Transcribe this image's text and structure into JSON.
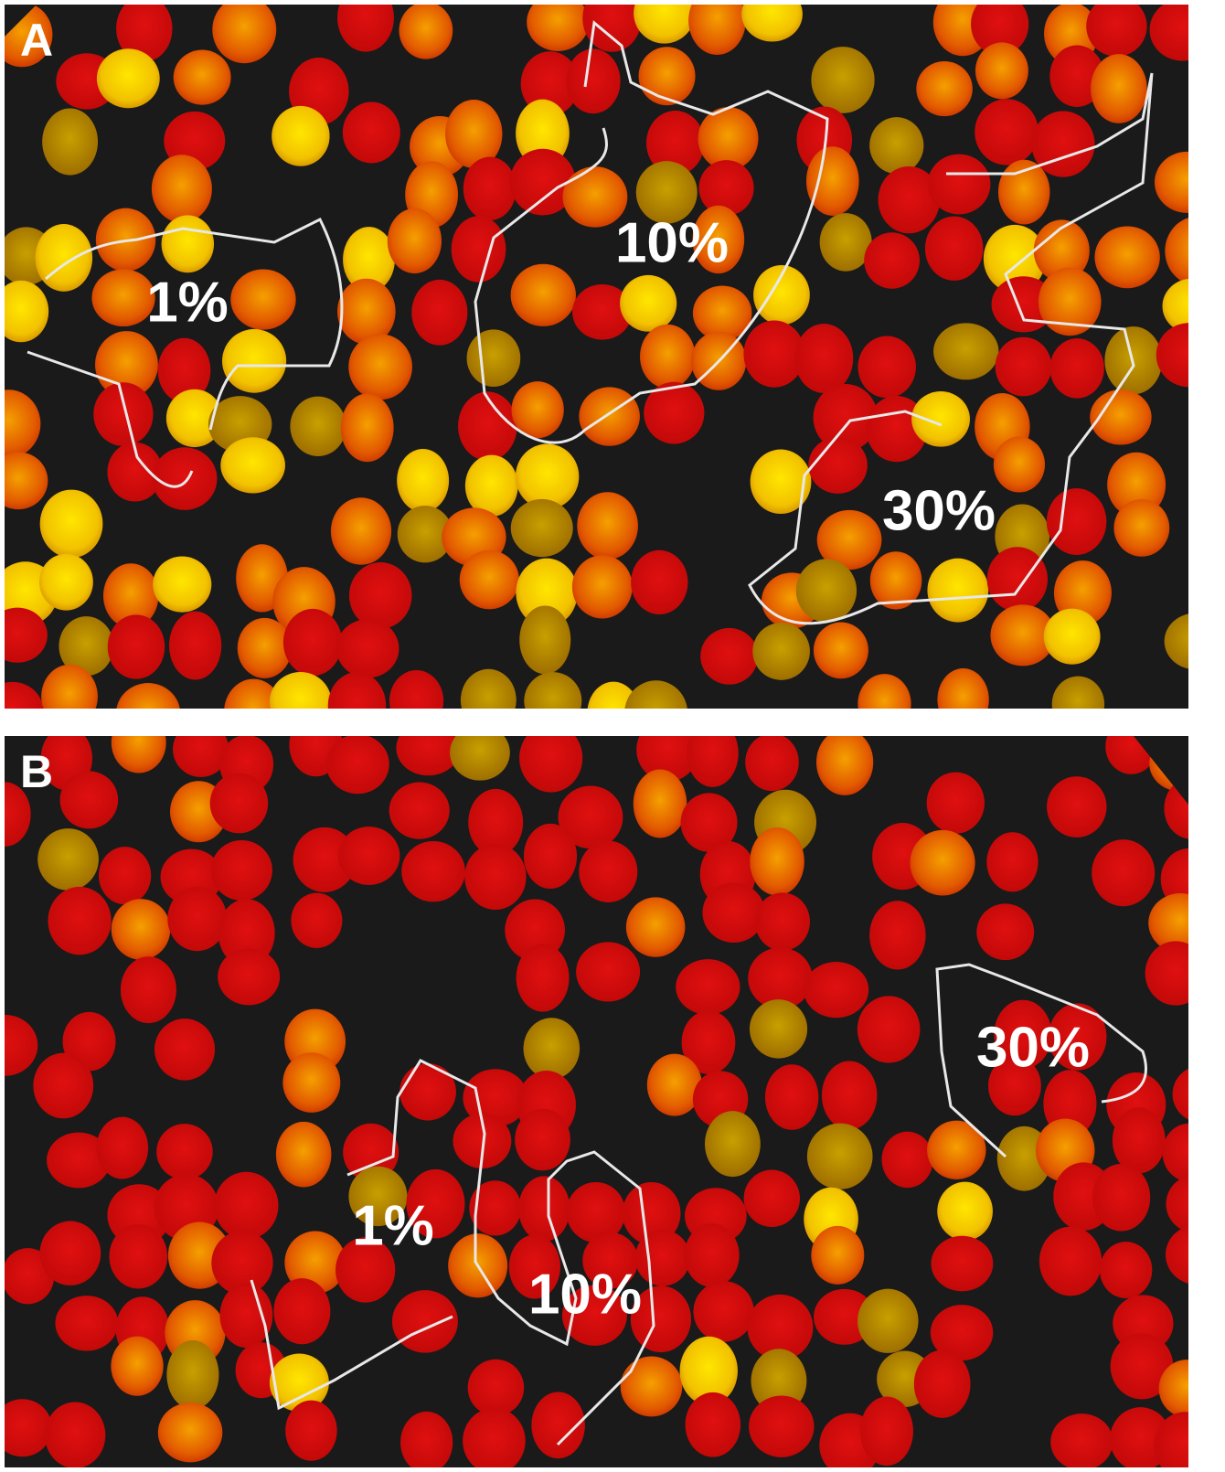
{
  "panels": [
    {
      "label": "A",
      "annotations": [
        "1%",
        "10%",
        "30%"
      ]
    },
    {
      "label": "B",
      "annotations": [
        "1%",
        "10%",
        "30%"
      ]
    }
  ]
}
